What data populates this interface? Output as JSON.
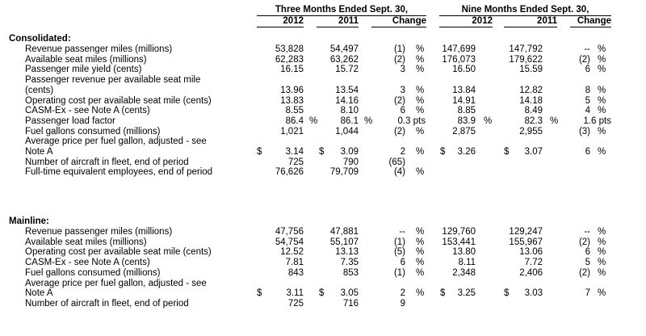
{
  "header": {
    "group3": "Three Months Ended Sept. 30,",
    "group9": "Nine Months Ended Sept. 30,",
    "cols": [
      "2012",
      "2011",
      "Change",
      "2012",
      "2011",
      "Change"
    ]
  },
  "sections": [
    {
      "title": "Consolidated:",
      "rows": [
        {
          "label": [
            "Revenue passenger miles (millions)"
          ],
          "q12": "53,828",
          "q11": "54,497",
          "qc": "(1)",
          "qcu": "%",
          "n12": "147,699",
          "n11": "147,792",
          "nc": "--",
          "ncu": "%"
        },
        {
          "label": [
            "Available seat miles (millions)"
          ],
          "q12": "62,283",
          "q11": "63,262",
          "qc": "(2)",
          "qcu": "%",
          "n12": "176,073",
          "n11": "179,622",
          "nc": "(2)",
          "ncu": "%"
        },
        {
          "label": [
            "Passenger mile yield (cents)"
          ],
          "q12": "16.15",
          "q11": "15.72",
          "qc": "3",
          "qcu": "%",
          "n12": "16.50",
          "n11": "15.59",
          "nc": "6",
          "ncu": "%"
        },
        {
          "label": [
            "Passenger revenue per available seat mile",
            "(cents)"
          ],
          "q12": "13.96",
          "q11": "13.54",
          "qc": "3",
          "qcu": "%",
          "n12": "13.84",
          "n11": "12.82",
          "nc": "8",
          "ncu": "%"
        },
        {
          "label": [
            "Operating cost per available seat mile (cents)"
          ],
          "q12": "13.83",
          "q11": "14.16",
          "qc": "(2)",
          "qcu": "%",
          "n12": "14.91",
          "n11": "14.18",
          "nc": "5",
          "ncu": "%"
        },
        {
          "label": [
            "CASM-Ex - see Note A (cents)"
          ],
          "q12": "8.55",
          "q11": "8.10",
          "qc": "6",
          "qcu": "%",
          "n12": "8.85",
          "n11": "8.49",
          "nc": "4",
          "ncu": "%"
        },
        {
          "label": [
            "Passenger load factor"
          ],
          "q12": "86.4",
          "q12s": "%",
          "q11": "86.1",
          "q11s": "%",
          "qc": "0.3 pts",
          "n12": "83.9",
          "n12s": "%",
          "n11": "82.3",
          "n11s": "%",
          "nc": "1.6 pts"
        },
        {
          "label": [
            "Fuel gallons consumed (millions)"
          ],
          "q12": "1,021",
          "q11": "1,044",
          "qc": "(2)",
          "qcu": "%",
          "n12": "2,875",
          "n11": "2,955",
          "nc": "(3)",
          "ncu": "%"
        },
        {
          "label": [
            "Average price per fuel gallon, adjusted - see",
            "Note A"
          ],
          "q12p": "$",
          "q12": "3.14",
          "q11p": "$",
          "q11": "3.09",
          "qc": "2",
          "qcu": "%",
          "n12p": "$",
          "n12": "3.26",
          "n11p": "$",
          "n11": "3.07",
          "nc": "6",
          "ncu": "%"
        },
        {
          "label": [
            "Number of aircraft in fleet, end of period"
          ],
          "q12": "725",
          "q11": "790",
          "qc": "(65)"
        },
        {
          "label": [
            "Full-time equivalent employees, end of period"
          ],
          "q12": "76,626",
          "q11": "79,709",
          "qc": "(4)",
          "qcu": "%"
        }
      ]
    },
    {
      "title": "Mainline:",
      "rows": [
        {
          "label": [
            "Revenue passenger miles (millions)"
          ],
          "q12": "47,756",
          "q11": "47,881",
          "qc": "--",
          "qcu": "%",
          "n12": "129,760",
          "n11": "129,247",
          "nc": "--",
          "ncu": "%"
        },
        {
          "label": [
            "Available seat miles (millions)"
          ],
          "q12": "54,754",
          "q11": "55,107",
          "qc": "(1)",
          "qcu": "%",
          "n12": "153,441",
          "n11": "155,967",
          "nc": "(2)",
          "ncu": "%"
        },
        {
          "label": [
            "Operating cost per available seat mile (cents)"
          ],
          "q12": "12.52",
          "q11": "13.13",
          "qc": "(5)",
          "qcu": "%",
          "n12": "13.80",
          "n11": "13.06",
          "nc": "6",
          "ncu": "%"
        },
        {
          "label": [
            "CASM-Ex - see Note A (cents)"
          ],
          "q12": "7.81",
          "q11": "7.35",
          "qc": "6",
          "qcu": "%",
          "n12": "8.11",
          "n11": "7.72",
          "nc": "5",
          "ncu": "%"
        },
        {
          "label": [
            "Fuel gallons consumed (millions)"
          ],
          "q12": "843",
          "q11": "853",
          "qc": "(1)",
          "qcu": "%",
          "n12": "2,348",
          "n11": "2,406",
          "nc": "(2)",
          "ncu": "%"
        },
        {
          "label": [
            "Average price per fuel gallon, adjusted - see",
            "Note A"
          ],
          "q12p": "$",
          "q12": "3.11",
          "q11p": "$",
          "q11": "3.05",
          "qc": "2",
          "qcu": "%",
          "n12p": "$",
          "n12": "3.25",
          "n11p": "$",
          "n11": "3.03",
          "nc": "7",
          "ncu": "%"
        },
        {
          "label": [
            "Number of aircraft in fleet, end of period"
          ],
          "q12": "725",
          "q11": "716",
          "qc": "9"
        }
      ]
    }
  ]
}
